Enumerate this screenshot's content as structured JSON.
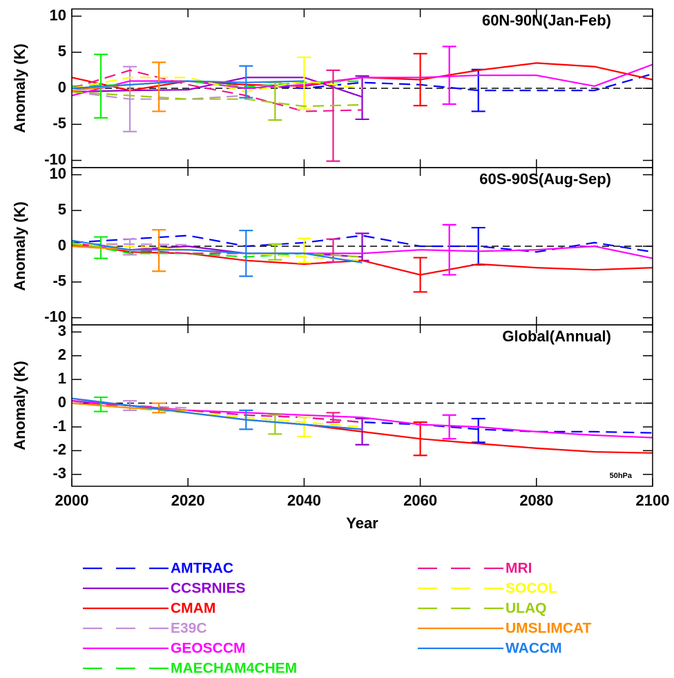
{
  "chart_data": [
    {
      "type": "line",
      "title": "60N-90N(Jan-Feb)",
      "y_label": "Anomaly (K)",
      "x": [
        2000,
        2010,
        2020,
        2030,
        2040,
        2050,
        2060,
        2070,
        2080,
        2090,
        2100
      ],
      "xlim": [
        2000,
        2100
      ],
      "xticks": [
        2000,
        2020,
        2040,
        2060,
        2080,
        2100
      ],
      "ylim": [
        -11,
        11
      ],
      "yticks": [
        -10,
        -5,
        0,
        5,
        10
      ],
      "series": [
        {
          "name": "AMTRAC",
          "color": "#0000ff",
          "dash": true,
          "values": [
            0,
            0.5,
            1.0,
            0.5,
            0.0,
            0.8,
            0.5,
            -0.3,
            -0.3,
            -0.3,
            2.0
          ],
          "errorbar": {
            "x": 2070,
            "value": -0.3,
            "error": 2.9
          }
        },
        {
          "name": "CCSRNIES",
          "color": "#9000d0",
          "dash": false,
          "values": [
            -0.5,
            -0.3,
            -0.2,
            1.5,
            1.5,
            -1.2,
            null,
            null,
            null,
            null,
            null
          ],
          "errorbar": {
            "x": 2050,
            "value": -1.3,
            "error": 3.0
          }
        },
        {
          "name": "CMAM",
          "color": "#ff0000",
          "dash": false,
          "values": [
            1.5,
            -0.3,
            1.0,
            0.5,
            0.3,
            1.5,
            1.2,
            2.5,
            3.5,
            3.0,
            1.2
          ],
          "errorbar": {
            "x": 2060,
            "value": 1.2,
            "error": 3.6
          }
        },
        {
          "name": "E39C",
          "color": "#c38fd8",
          "dash": true,
          "values": [
            -0.5,
            -1.5,
            -1.5,
            -1.0,
            null,
            null,
            null,
            null,
            null,
            null,
            null
          ],
          "errorbar": {
            "x": 2010,
            "value": -1.5,
            "error": 4.5
          }
        },
        {
          "name": "GEOSCCM",
          "color": "#ff00ff",
          "dash": false,
          "values": [
            -1.0,
            1.0,
            1.0,
            0.0,
            0.5,
            1.5,
            1.5,
            1.8,
            1.8,
            0.3,
            3.3
          ],
          "errorbar": {
            "x": 2065,
            "value": 1.8,
            "error": 4.0
          }
        },
        {
          "name": "MAECHAM4CHEM",
          "color": "#11ee11",
          "dash": true,
          "values": [
            0.3,
            0.5,
            1.0,
            0.2,
            0.8,
            1.0,
            null,
            null,
            null,
            null,
            null
          ],
          "errorbar": {
            "x": 2005,
            "value": 0.3,
            "error": 4.4
          }
        },
        {
          "name": "MRI",
          "color": "#ee1a8c",
          "dash": true,
          "values": [
            0,
            2.5,
            0.5,
            -1.0,
            -3.2,
            -3.0,
            null,
            null,
            null,
            null,
            null
          ],
          "errorbar": {
            "x": 2045,
            "value": -3.8,
            "error": 6.3
          }
        },
        {
          "name": "SOCOL",
          "color": "#ffff00",
          "dash": true,
          "values": [
            0.0,
            1.5,
            1.5,
            -0.5,
            1.0,
            0.0,
            null,
            null,
            null,
            null,
            null
          ],
          "errorbar": {
            "x": 2040,
            "value": 0.7,
            "error": 3.6
          }
        },
        {
          "name": "ULAQ",
          "color": "#9acd0b",
          "dash": true,
          "values": [
            -0.5,
            -1.0,
            -1.5,
            -1.5,
            -2.5,
            -2.3,
            null,
            null,
            null,
            null,
            null
          ],
          "errorbar": {
            "x": 2035,
            "value": -1.8,
            "error": 2.6
          }
        },
        {
          "name": "UMSLIMCAT",
          "color": "#ff8c00",
          "dash": false,
          "values": [
            -0.3,
            0.5,
            1.0,
            null,
            null,
            null,
            null,
            null,
            null,
            null,
            null
          ],
          "errorbar": {
            "x": 2015,
            "value": 0.2,
            "error": 3.4
          }
        },
        {
          "name": "WACCM",
          "color": "#1e7ff0",
          "dash": false,
          "values": [
            0,
            0.5,
            1.0,
            0.8,
            1.0,
            null,
            null,
            null,
            null,
            null,
            null
          ],
          "errorbar": {
            "x": 2030,
            "value": 0.9,
            "error": 2.2
          }
        }
      ]
    },
    {
      "type": "line",
      "title": "60S-90S(Aug-Sep)",
      "y_label": "Anomaly (K)",
      "x": [
        2000,
        2010,
        2020,
        2030,
        2040,
        2050,
        2060,
        2070,
        2080,
        2090,
        2100
      ],
      "xlim": [
        2000,
        2100
      ],
      "xticks": [
        2000,
        2020,
        2040,
        2060,
        2080,
        2100
      ],
      "ylim": [
        -11,
        11
      ],
      "yticks": [
        -10,
        -5,
        0,
        5,
        10
      ],
      "series": [
        {
          "values": [
            0.5,
            1.0,
            1.5,
            0.0,
            0.5,
            1.5,
            0.0,
            0.0,
            -0.8,
            0.5,
            -0.8
          ],
          "errorbar": {
            "x": 2070,
            "value": 0.0,
            "error": 2.6
          }
        },
        {
          "values": [
            0.2,
            -0.5,
            0.0,
            -1.0,
            -1.0,
            -1.5,
            null,
            null,
            null,
            null,
            null
          ],
          "errorbar": {
            "x": 2050,
            "value": -0.1,
            "error": 1.9
          }
        },
        {
          "values": [
            0.5,
            -0.8,
            -1.0,
            -2.0,
            -2.5,
            -2.0,
            -4.0,
            -2.5,
            -3.0,
            -3.3,
            -3.0
          ],
          "errorbar": {
            "x": 2060,
            "value": -4.0,
            "error": 2.4
          }
        },
        {
          "values": [
            0.3,
            0.3,
            0.2,
            null,
            null,
            null,
            null,
            null,
            null,
            null,
            null
          ],
          "errorbar": {
            "x": 2010,
            "value": -0.1,
            "error": 1.1
          }
        },
        {
          "values": [
            0.3,
            -0.5,
            -0.5,
            -1.0,
            -1.0,
            -1.0,
            -0.5,
            -0.7,
            -0.5,
            0.0,
            -1.7
          ],
          "errorbar": {
            "x": 2065,
            "value": -0.5,
            "error": 3.5
          }
        },
        {
          "values": [
            0.5,
            -1.0,
            -1.0,
            -1.5,
            -1.0,
            null,
            null,
            null,
            null,
            null,
            null
          ],
          "errorbar": {
            "x": 2005,
            "value": -0.2,
            "error": 1.5
          }
        },
        {
          "values": [
            0,
            -0.5,
            -1.0,
            -1.0,
            -1.5,
            -2.0,
            null,
            null,
            null,
            null,
            null
          ],
          "errorbar": {
            "x": 2045,
            "value": -0.6,
            "error": 1.6
          }
        },
        {
          "values": [
            0.3,
            0.0,
            -0.5,
            -1.0,
            -1.5,
            -2.0,
            null,
            null,
            null,
            null,
            null
          ],
          "errorbar": {
            "x": 2040,
            "value": -0.6,
            "error": 1.7
          }
        },
        {
          "values": [
            0.3,
            -0.5,
            -0.5,
            -1.0,
            -1.0,
            -1.5,
            null,
            null,
            null,
            null,
            null
          ],
          "errorbar": {
            "x": 2035,
            "value": -0.8,
            "error": 1.1
          }
        },
        {
          "values": [
            0.0,
            -0.5,
            -0.5,
            null,
            null,
            null,
            null,
            null,
            null,
            null,
            null
          ],
          "errorbar": {
            "x": 2015,
            "value": -0.6,
            "error": 2.9
          }
        },
        {
          "values": [
            0.8,
            -0.5,
            -0.5,
            -1.0,
            -1.0,
            -2.3,
            null,
            null,
            null,
            null,
            null
          ],
          "errorbar": {
            "x": 2030,
            "value": -1.0,
            "error": 3.2
          }
        }
      ]
    },
    {
      "type": "line",
      "title": "Global(Annual)",
      "y_label": "Anomaly (K)",
      "x_label": "Year",
      "annotation": "50hPa",
      "x": [
        2000,
        2010,
        2020,
        2030,
        2040,
        2050,
        2060,
        2070,
        2080,
        2090,
        2100
      ],
      "xlim": [
        2000,
        2100
      ],
      "xticks": [
        2000,
        2020,
        2040,
        2060,
        2080,
        2100
      ],
      "ylim": [
        -3.5,
        3.3
      ],
      "yticks": [
        -3,
        -2,
        -1,
        0,
        1,
        2,
        3
      ],
      "series": [
        {
          "values": [
            0.1,
            -0.1,
            -0.3,
            -0.5,
            -0.6,
            -0.8,
            -0.9,
            -1.1,
            -1.2,
            -1.2,
            -1.25
          ],
          "errorbar": {
            "x": 2070,
            "value": -1.15,
            "error": 0.5
          }
        },
        {
          "values": [
            0.1,
            -0.1,
            -0.4,
            -0.7,
            -0.9,
            -1.1,
            null,
            null,
            null,
            null,
            null
          ],
          "errorbar": {
            "x": 2050,
            "value": -1.2,
            "error": 0.55
          }
        },
        {
          "values": [
            0.2,
            -0.1,
            -0.4,
            -0.7,
            -0.9,
            -1.2,
            -1.5,
            -1.7,
            -1.9,
            -2.05,
            -2.1
          ],
          "errorbar": {
            "x": 2060,
            "value": -1.5,
            "error": 0.7
          }
        },
        {
          "values": [
            0.0,
            -0.1,
            -0.2,
            null,
            null,
            null,
            null,
            null,
            null,
            null,
            null
          ],
          "errorbar": {
            "x": 2010,
            "value": -0.1,
            "error": 0.2
          }
        },
        {
          "values": [
            0.1,
            -0.1,
            -0.3,
            -0.4,
            -0.5,
            -0.6,
            -0.9,
            -1.0,
            -1.2,
            -1.35,
            -1.45
          ],
          "errorbar": {
            "x": 2065,
            "value": -1.0,
            "error": 0.5
          }
        },
        {
          "values": [
            0.0,
            -0.2,
            -0.4,
            -0.7,
            -0.9,
            -1.1,
            null,
            null,
            null,
            null,
            null
          ],
          "errorbar": {
            "x": 2005,
            "value": -0.05,
            "error": 0.3
          }
        },
        {
          "values": [
            0.0,
            -0.1,
            -0.3,
            -0.5,
            -0.6,
            -0.8,
            null,
            null,
            null,
            null,
            null
          ],
          "errorbar": {
            "x": 2045,
            "value": -0.6,
            "error": 0.2
          }
        },
        {
          "values": [
            0.0,
            -0.2,
            -0.4,
            -0.6,
            -0.8,
            -1.0,
            null,
            null,
            null,
            null,
            null
          ],
          "errorbar": {
            "x": 2040,
            "value": -1.0,
            "error": 0.4
          }
        },
        {
          "values": [
            0.0,
            -0.2,
            -0.4,
            -0.7,
            -0.9,
            -1.1,
            null,
            null,
            null,
            null,
            null
          ],
          "errorbar": {
            "x": 2035,
            "value": -0.9,
            "error": 0.4
          }
        },
        {
          "values": [
            0.0,
            -0.2,
            -0.3,
            null,
            null,
            null,
            null,
            null,
            null,
            null,
            null
          ],
          "errorbar": {
            "x": 2015,
            "value": -0.2,
            "error": 0.2
          }
        },
        {
          "values": [
            0.2,
            -0.1,
            -0.4,
            -0.7,
            -0.9,
            -1.1,
            null,
            null,
            null,
            null,
            null
          ],
          "errorbar": {
            "x": 2030,
            "value": -0.7,
            "error": 0.4
          }
        }
      ]
    }
  ]
}
